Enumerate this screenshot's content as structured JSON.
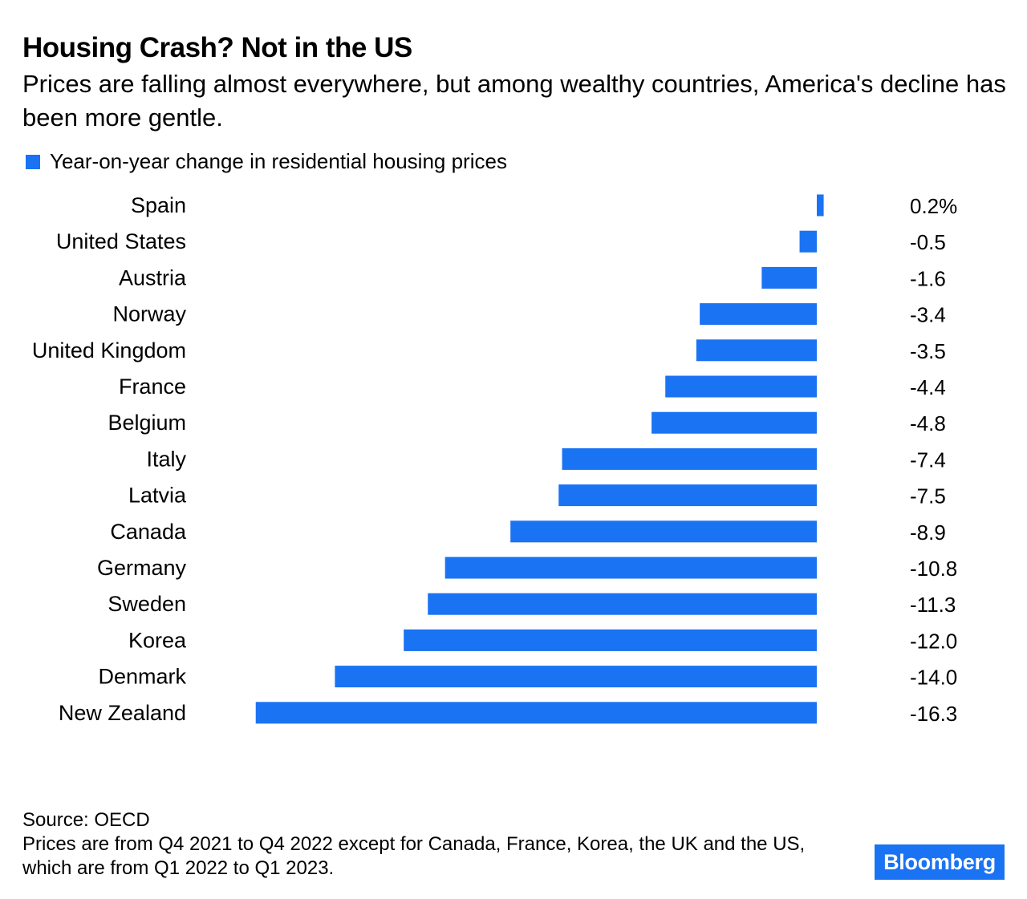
{
  "header": {
    "title": "Housing Crash? Not in the US",
    "subtitle": "Prices are falling almost everywhere, but among wealthy countries, America's decline has been more gentle."
  },
  "legend": {
    "label": "Year-on-year change in residential housing prices"
  },
  "footer": {
    "source": "Source: OECD",
    "note": "Prices are from Q4 2021 to Q4 2022 except for Canada, France, Korea, the UK and the US, which are from Q1 2022 to Q1 2023.",
    "brand": "Bloomberg"
  },
  "colors": {
    "bar": "#1a73f2",
    "text": "#000000",
    "background": "#ffffff"
  },
  "chart_data": {
    "type": "bar",
    "orientation": "horizontal",
    "title": "Housing Crash? Not in the US",
    "categories": [
      "Spain",
      "United States",
      "Austria",
      "Norway",
      "United Kingdom",
      "France",
      "Belgium",
      "Italy",
      "Latvia",
      "Canada",
      "Germany",
      "Sweden",
      "Korea",
      "Denmark",
      "New Zealand"
    ],
    "series": [
      {
        "name": "Year-on-year change in residential housing prices",
        "values": [
          0.2,
          -0.5,
          -1.6,
          -3.4,
          -3.5,
          -4.4,
          -4.8,
          -7.4,
          -7.5,
          -8.9,
          -10.8,
          -11.3,
          -12.0,
          -14.0,
          -16.3
        ]
      }
    ],
    "value_labels": [
      "0.2%",
      "-0.5",
      "-1.6",
      "-3.4",
      "-3.5",
      "-4.4",
      "-4.8",
      "-7.4",
      "-7.5",
      "-8.9",
      "-10.8",
      "-11.3",
      "-12.0",
      "-14.0",
      "-16.3"
    ],
    "xlim": [
      -16.3,
      0.2
    ],
    "grid": false,
    "legend_position": "top-left"
  }
}
